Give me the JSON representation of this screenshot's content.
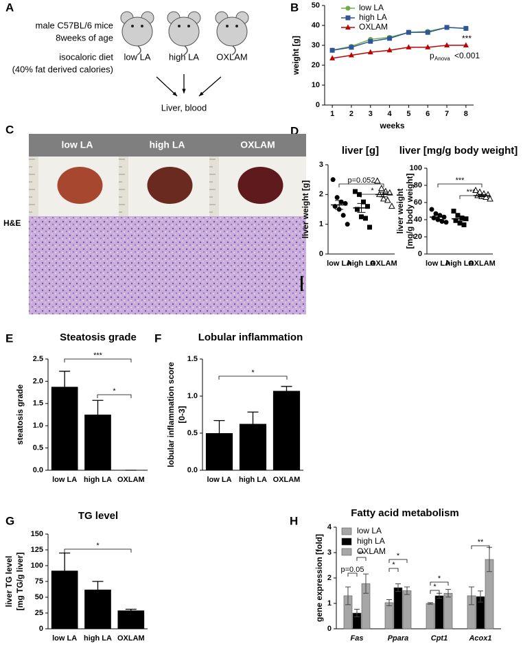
{
  "figure": {
    "panel_labels": [
      "A",
      "B",
      "C",
      "D",
      "E",
      "F",
      "G",
      "H"
    ]
  },
  "panel_a": {
    "mice": [
      "male C57BL/6 mice",
      "8weeks of age"
    ],
    "diet": [
      "isocaloric diet",
      "(40% fat derived calories)"
    ],
    "groups": [
      "low LA",
      "high LA",
      "OXLAM"
    ],
    "outcome": "Liver, blood"
  },
  "panel_c": {
    "groups": [
      "low LA",
      "high LA",
      "OXLAM"
    ],
    "stain": "H&E"
  },
  "chart_data": [
    {
      "type": "line",
      "xlabel": "weeks",
      "ylabel": [
        "weight [g]"
      ],
      "x": [
        1,
        2,
        3,
        4,
        5,
        6,
        7,
        8
      ],
      "xlim": [
        0.6,
        8.4
      ],
      "xticks": [
        1,
        2,
        3,
        4,
        5,
        6,
        7,
        8
      ],
      "ylim": [
        0,
        50
      ],
      "yticks": [
        0,
        10,
        20,
        30,
        40,
        50
      ],
      "legend": "upper left",
      "series": [
        {
          "name": "low LA",
          "color": "#70ad47",
          "values": [
            27.5,
            29.5,
            33,
            34,
            36.5,
            37,
            39,
            38.5
          ]
        },
        {
          "name": "high LA",
          "color": "#2f5597",
          "values": [
            27.5,
            29,
            32,
            33.5,
            36.5,
            36.5,
            39,
            38.5
          ]
        },
        {
          "name": "OXLAM",
          "color": "#c00000",
          "values": [
            23.5,
            25,
            26.5,
            27.5,
            29,
            29,
            30,
            30
          ]
        }
      ],
      "annotations": [
        "***",
        "p",
        "Anova",
        "<0.001"
      ]
    },
    {
      "type": "dot",
      "title": "liver [g]",
      "ylabel": [
        "liver weight [g]"
      ],
      "categories": [
        "low LA",
        "high LA",
        "OXLAM"
      ],
      "values": [
        [
          2.5,
          1.9,
          1.75,
          1.7,
          1.6,
          1.5,
          1.3,
          1.0
        ],
        [
          2.1,
          2.0,
          1.75,
          1.6,
          1.5,
          1.25,
          1.2,
          0.9
        ],
        [
          2.45,
          2.2,
          2.1,
          2.05,
          2.0,
          1.85,
          1.8,
          1.6
        ]
      ],
      "means": [
        1.65,
        1.55,
        2.0
      ],
      "sems": [
        0.15,
        0.15,
        0.08
      ],
      "ylim": [
        0,
        3
      ],
      "yticks": [
        0,
        1,
        2,
        3
      ],
      "annotations": [
        "p=0.052",
        "*"
      ]
    },
    {
      "type": "dot",
      "title": "liver [mg/g body weight]",
      "ylabel": [
        "liver weight",
        "[mg/g body weight]"
      ],
      "categories": [
        "low LA",
        "high LA",
        "OXLAM"
      ],
      "values": [
        [
          52,
          47,
          45,
          43,
          42,
          40,
          38,
          37
        ],
        [
          50,
          45,
          42,
          41,
          39,
          36,
          34
        ],
        [
          74,
          72,
          70,
          69,
          68,
          67,
          66,
          64
        ]
      ],
      "means": [
        43,
        41,
        68
      ],
      "sems": [
        2.5,
        2.5,
        1.2
      ],
      "ylim": [
        0,
        100
      ],
      "yticks": [
        0,
        20,
        40,
        60,
        80,
        100
      ],
      "annotations": [
        "***",
        "***"
      ]
    },
    {
      "type": "bar",
      "title": "Steatosis grade",
      "ylabel": [
        "steatosis grade"
      ],
      "color": "#000000",
      "categories": [
        "low LA",
        "high LA",
        "OXLAM"
      ],
      "values": [
        1.875,
        1.25,
        0
      ],
      "errors": [
        0.35,
        0.32,
        0
      ],
      "ylim": [
        0,
        2.5
      ],
      "yticks": [
        {
          "value": 0,
          "label": "0.0"
        },
        0.5,
        {
          "value": 1,
          "label": "1.0"
        },
        1.5,
        {
          "value": 2,
          "label": "2.0"
        },
        2.5
      ],
      "annotations": [
        "***",
        "*"
      ]
    },
    {
      "type": "bar",
      "title": "Lobular inflammation",
      "ylabel": [
        "lobular inflammation score",
        "[0-3]"
      ],
      "color": "#000000",
      "categories": [
        "low LA",
        "high LA",
        "OXLAM"
      ],
      "values": [
        0.5,
        0.625,
        1.07
      ],
      "errors": [
        0.17,
        0.16,
        0.06
      ],
      "ylim": [
        0,
        1.5
      ],
      "yticks": [
        {
          "value": 0,
          "label": "0.0"
        },
        0.5,
        {
          "value": 1,
          "label": "1.0"
        },
        1.5
      ],
      "annotations": [
        "*"
      ]
    },
    {
      "type": "bar",
      "title": "TG level",
      "ylabel": [
        "liver TG level",
        "[mg TG/g liver]"
      ],
      "color": "#000000",
      "categories": [
        "low LA",
        "high LA",
        "OXLAM"
      ],
      "values": [
        92,
        62,
        29
      ],
      "errors": [
        28,
        13,
        2
      ],
      "ylim": [
        0,
        150
      ],
      "yticks": [
        0,
        25,
        50,
        75,
        100,
        125,
        150
      ],
      "annotations": [
        "*"
      ]
    },
    {
      "type": "groupedbar",
      "title": "Fatty acid metabolism",
      "ylabel": [
        "gene expression [fold]"
      ],
      "categories": [
        "Fas",
        "Ppara",
        "Cpt1",
        "Acox1"
      ],
      "legend": "upper left",
      "series": [
        {
          "name": "low LA",
          "color": "#a6a6a6",
          "values": [
            1.3,
            1.03,
            1.0,
            1.3
          ],
          "errors": [
            0.35,
            0.12,
            0.03,
            0.35
          ]
        },
        {
          "name": "high LA",
          "color": "#000000",
          "values": [
            0.62,
            1.62,
            1.3,
            1.27
          ],
          "errors": [
            0.15,
            0.15,
            0.1,
            0.22
          ]
        },
        {
          "name": "OXLAM",
          "color": "#a6a6a6",
          "values": [
            1.78,
            1.5,
            1.4,
            2.73
          ],
          "errors": [
            0.38,
            0.15,
            0.15,
            0.48
          ]
        }
      ],
      "ylim": [
        0,
        4
      ],
      "yticks": [
        0,
        1,
        2,
        3,
        4
      ],
      "annotations": [
        "p=0.05",
        "**",
        "*",
        "*",
        "*",
        "*",
        "**"
      ]
    }
  ]
}
